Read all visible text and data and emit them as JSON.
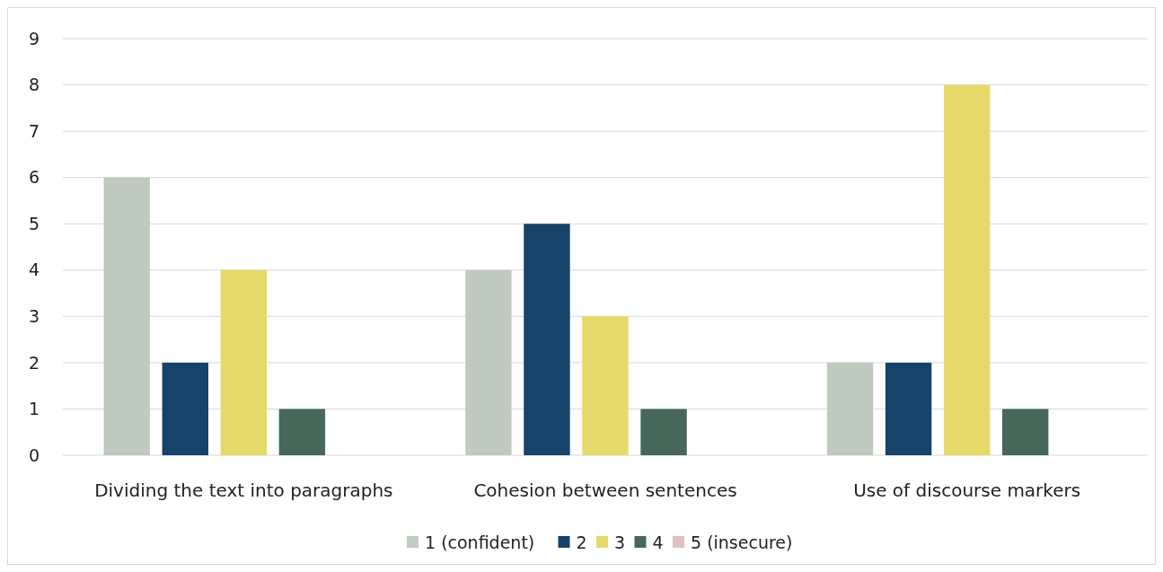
{
  "chart_data": {
    "type": "bar",
    "categories": [
      "Dividing the text into paragraphs",
      "Cohesion between sentences",
      "Use of discourse markers"
    ],
    "series": [
      {
        "name": "1 (confident)",
        "color": "#bfcbbf",
        "values": [
          6,
          4,
          2
        ]
      },
      {
        "name": "2",
        "color": "#17426a",
        "values": [
          2,
          5,
          2
        ]
      },
      {
        "name": "3",
        "color": "#e5d96a",
        "values": [
          4,
          3,
          8
        ]
      },
      {
        "name": "4",
        "color": "#45685b",
        "values": [
          1,
          1,
          1
        ]
      },
      {
        "name": "5 (insecure)",
        "color": "#dfc2c2",
        "values": [
          0,
          0,
          0
        ]
      }
    ],
    "ylim": [
      0,
      9
    ],
    "yticks": [
      0,
      1,
      2,
      3,
      4,
      5,
      6,
      7,
      8,
      9
    ],
    "grid": "y",
    "legend": "bottom"
  }
}
